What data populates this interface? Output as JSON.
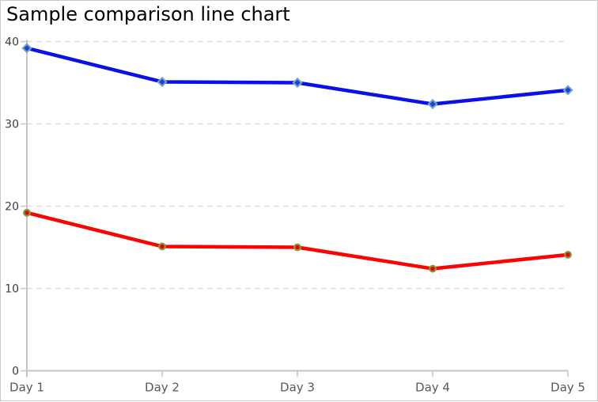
{
  "window": {
    "background_color": "#ffffff",
    "border_color": "#c9c9c9"
  },
  "chart_data": {
    "type": "line",
    "title": "Sample comparison line chart",
    "categories": [
      "Day 1",
      "Day 2",
      "Day 3",
      "Day 4",
      "Day 5"
    ],
    "series": [
      {
        "name": "blue",
        "values": [
          39.2,
          35.1,
          35.0,
          32.4,
          34.1
        ],
        "line_color": "#0a10e8",
        "marker": "diamond",
        "marker_fill": "#1747d1",
        "marker_stroke": "#74a3cb"
      },
      {
        "name": "red",
        "values": [
          19.2,
          15.1,
          15.0,
          12.4,
          14.1
        ],
        "line_color": "#fa0402",
        "marker": "circle",
        "marker_fill": "#e60000",
        "marker_stroke": "#879a3e"
      }
    ],
    "xlabel": "",
    "ylabel": "",
    "ylim": [
      0,
      40
    ],
    "yticks": [
      0,
      10,
      20,
      30,
      40
    ],
    "grid": "horizontal dashed",
    "legend": "none",
    "grid_color": "#d9d9d9",
    "axis_color": "#c6c6c6",
    "ytick_label_color": "#3d3d3d",
    "xtick_label_color": "#595959"
  }
}
